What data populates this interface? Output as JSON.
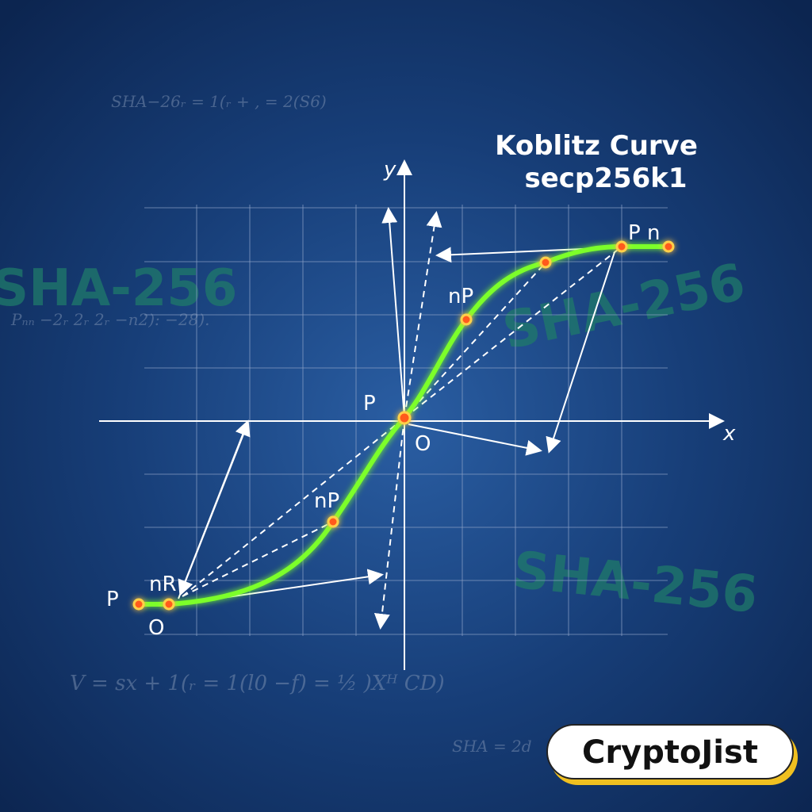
{
  "title": {
    "line1": "Koblitz Curve",
    "line2": "secp256k1"
  },
  "axes": {
    "x": "x",
    "y": "y"
  },
  "points": {
    "center": "P",
    "origin": "O",
    "upper_np": "nP",
    "lower_np": "nP",
    "top_right": "P n",
    "bottom_p": "P",
    "bottom_nr": "nR",
    "bottom_o": "O"
  },
  "watermarks": [
    "SHA-256",
    "SHA-256",
    "SHA-256"
  ],
  "formulas": [
    "SHA−26ᵣ = 1(ᵣ + , = 2(S6)",
    "Pₙₙ −2ᵣ 2ᵣ 2ᵣ −n2): −28).",
    "V = sx + 1(ᵣ = 1(l0 −f) = ½ )Xᴴ CD)",
    "SHA = 2d"
  ],
  "logo": "CryptoJist"
}
